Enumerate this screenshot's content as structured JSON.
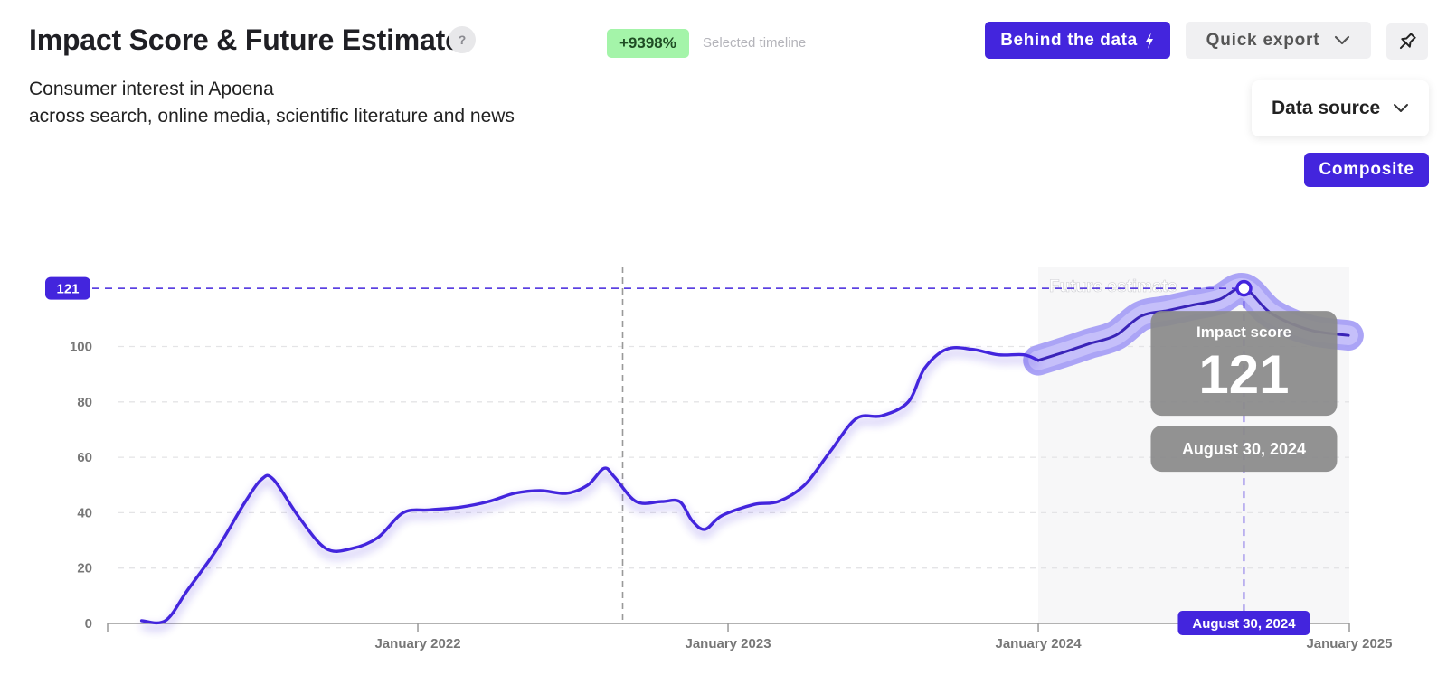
{
  "header": {
    "title": "Impact Score & Future Estimate",
    "help": "?",
    "subtitle_line1": "Consumer interest in Apoena",
    "subtitle_line2": "across search, online media, scientific literature and news",
    "change_badge": "+9398%",
    "timeline_label": "Selected timeline"
  },
  "toolbar": {
    "behind_label": "Behind the data",
    "export_label": "Quick export",
    "source_label": "Data source",
    "composite_label": "Composite"
  },
  "colors": {
    "accent": "#4325dd",
    "badge_green": "#a4f4a9",
    "forecast_band": "#a29af5",
    "forecast_region": "#f7f7f8",
    "tooltip": "#8a8a8a"
  },
  "chart_data": {
    "type": "line",
    "title": "Impact Score & Future Estimate",
    "ylim": [
      0,
      121
    ],
    "yticks": [
      0,
      20,
      40,
      60,
      80,
      100
    ],
    "xticks": [
      {
        "label": "January 2022",
        "date": "2022-01-01"
      },
      {
        "label": "January 2023",
        "date": "2023-01-01"
      },
      {
        "label": "January 2024",
        "date": "2024-01-01"
      },
      {
        "label": "January 2025",
        "date": "2025-01-01"
      }
    ],
    "grid": true,
    "reference_line": {
      "value": 121,
      "label": "121"
    },
    "vertical_marker_date": "2022-08-30",
    "series": [
      {
        "kind": "historical",
        "points": [
          [
            "2021-02-10",
            1
          ],
          [
            "2021-03-10",
            1
          ],
          [
            "2021-04-05",
            12
          ],
          [
            "2021-05-10",
            27
          ],
          [
            "2021-06-10",
            43
          ],
          [
            "2021-07-01",
            52
          ],
          [
            "2021-07-15",
            52
          ],
          [
            "2021-08-15",
            38
          ],
          [
            "2021-09-15",
            27
          ],
          [
            "2021-10-15",
            27
          ],
          [
            "2021-11-15",
            31
          ],
          [
            "2021-12-15",
            40
          ],
          [
            "2022-01-15",
            41
          ],
          [
            "2022-02-20",
            42
          ],
          [
            "2022-03-25",
            44
          ],
          [
            "2022-04-25",
            47
          ],
          [
            "2022-05-25",
            48
          ],
          [
            "2022-06-25",
            47
          ],
          [
            "2022-07-20",
            50
          ],
          [
            "2022-08-08",
            56
          ],
          [
            "2022-08-20",
            53
          ],
          [
            "2022-09-15",
            44
          ],
          [
            "2022-10-15",
            44
          ],
          [
            "2022-11-05",
            44
          ],
          [
            "2022-11-20",
            37
          ],
          [
            "2022-12-05",
            34
          ],
          [
            "2022-12-25",
            39
          ],
          [
            "2023-02-01",
            43
          ],
          [
            "2023-03-01",
            44
          ],
          [
            "2023-04-01",
            50
          ],
          [
            "2023-05-01",
            62
          ],
          [
            "2023-06-01",
            74
          ],
          [
            "2023-07-01",
            75
          ],
          [
            "2023-08-01",
            80
          ],
          [
            "2023-08-20",
            92
          ],
          [
            "2023-09-15",
            99
          ],
          [
            "2023-10-15",
            99
          ],
          [
            "2023-11-15",
            97
          ],
          [
            "2023-12-15",
            97
          ],
          [
            "2024-01-01",
            95
          ]
        ]
      },
      {
        "kind": "forecast",
        "points": [
          [
            "2024-01-01",
            95
          ],
          [
            "2024-02-01",
            98
          ],
          [
            "2024-03-01",
            101
          ],
          [
            "2024-04-01",
            104
          ],
          [
            "2024-05-01",
            111
          ],
          [
            "2024-06-01",
            113
          ],
          [
            "2024-07-01",
            115
          ],
          [
            "2024-08-01",
            117
          ],
          [
            "2024-08-30",
            121
          ],
          [
            "2024-10-01",
            112
          ],
          [
            "2024-11-15",
            106
          ],
          [
            "2024-12-31",
            104
          ]
        ],
        "band_width": 9
      }
    ],
    "forecast_label": "Future estimate",
    "forecast_start": "2024-01-01",
    "tooltip": {
      "title": "Impact score",
      "value": "121",
      "date": "August 30, 2024"
    }
  }
}
